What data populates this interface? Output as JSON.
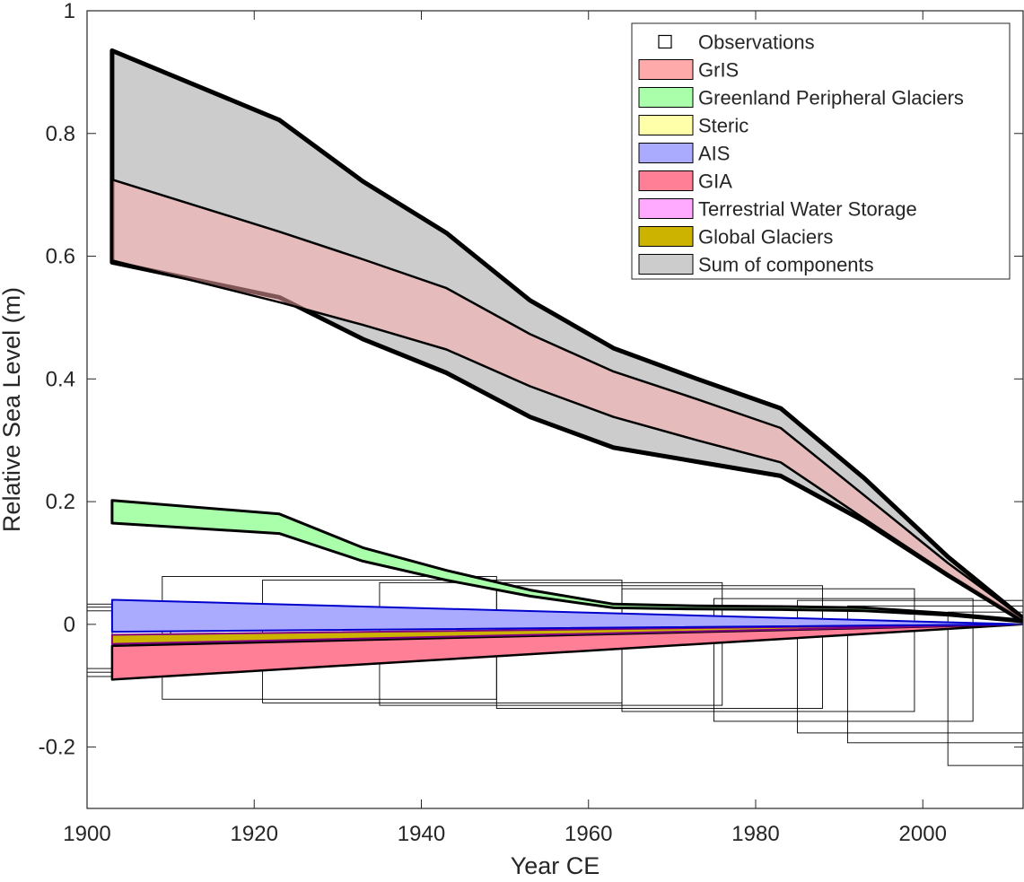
{
  "chart_data": {
    "type": "area",
    "title": "",
    "xlabel": "Year CE",
    "ylabel": "Relative Sea Level (m)",
    "xlim": [
      1900,
      2012
    ],
    "ylim": [
      -0.3,
      1.0
    ],
    "xticks": [
      1900,
      1920,
      1940,
      1960,
      1980,
      2000
    ],
    "yticks": [
      -0.2,
      0,
      0.2,
      0.4,
      0.6,
      0.8,
      1
    ],
    "ytick_labels": [
      "-0.2",
      "0",
      "0.2",
      "0.4",
      "0.6",
      "0.8",
      "1"
    ],
    "grid": false,
    "legend_position": "top-right",
    "legend": [
      {
        "key": "obs",
        "label": "Observations",
        "kind": "marker"
      },
      {
        "key": "gris",
        "label": "GrIS",
        "kind": "patch",
        "color": "#ffaaaa"
      },
      {
        "key": "gpg",
        "label": "Greenland Peripheral Glaciers",
        "kind": "patch",
        "color": "#aaffaa"
      },
      {
        "key": "steric",
        "label": "Steric",
        "kind": "patch",
        "color": "#ffffaa"
      },
      {
        "key": "ais",
        "label": "AIS",
        "kind": "patch",
        "color": "#aaaaff"
      },
      {
        "key": "gia",
        "label": "GIA",
        "kind": "patch",
        "color": "#ff7f96"
      },
      {
        "key": "tws",
        "label": "Terrestrial Water Storage",
        "kind": "patch",
        "color": "#ffaaff"
      },
      {
        "key": "gg",
        "label": "Global Glaciers",
        "kind": "patch",
        "color": "#ccb300"
      },
      {
        "key": "sum",
        "label": "Sum of components",
        "kind": "patch",
        "color": "#cccccc"
      }
    ],
    "bands": [
      {
        "name": "Sum of components",
        "color": "#cccccc",
        "edge": "#000000",
        "edge_width": 5,
        "x": [
          1903,
          1923,
          1933,
          1943,
          1953,
          1963,
          1973,
          1983,
          1993,
          2003,
          2012
        ],
        "upper": [
          0.935,
          0.822,
          0.722,
          0.638,
          0.528,
          0.45,
          0.4,
          0.352,
          0.238,
          0.11,
          0.01
        ],
        "lower": [
          0.59,
          0.533,
          0.465,
          0.41,
          0.338,
          0.288,
          0.265,
          0.242,
          0.168,
          0.08,
          0.005
        ]
      },
      {
        "name": "GrIS",
        "color": "#ffaaaa",
        "opacity": 0.5,
        "edge": "#000000",
        "edge_width": 2.5,
        "x": [
          1903,
          1923,
          1933,
          1943,
          1953,
          1963,
          1973,
          1983,
          1993,
          2003,
          2012
        ],
        "upper": [
          0.725,
          0.64,
          0.595,
          0.548,
          0.473,
          0.412,
          0.367,
          0.32,
          0.21,
          0.1,
          0.01
        ],
        "lower": [
          0.593,
          0.525,
          0.488,
          0.448,
          0.388,
          0.338,
          0.3,
          0.264,
          0.172,
          0.082,
          0.005
        ]
      },
      {
        "name": "Greenland Peripheral Glaciers",
        "color": "#aaffaa",
        "edge": "#000000",
        "edge_width": 3,
        "x": [
          1903,
          1923,
          1933,
          1943,
          1953,
          1963,
          1973,
          1983,
          1993,
          2003,
          2012
        ],
        "upper": [
          0.202,
          0.18,
          0.125,
          0.088,
          0.056,
          0.033,
          0.03,
          0.029,
          0.027,
          0.018,
          0.007
        ],
        "lower": [
          0.165,
          0.148,
          0.103,
          0.072,
          0.046,
          0.027,
          0.025,
          0.024,
          0.022,
          0.015,
          0.004
        ]
      },
      {
        "name": "GIA",
        "color": "#ff7f96",
        "edge": "#000000",
        "edge_width": 2.5,
        "x": [
          1903,
          2012
        ],
        "upper": [
          -0.035,
          0.0
        ],
        "lower": [
          -0.09,
          0.0
        ]
      },
      {
        "name": "Global Glaciers",
        "color": "#ccb300",
        "edge": "#800080",
        "edge_width": 2,
        "x": [
          1903,
          2012
        ],
        "upper": [
          -0.017,
          0.0
        ],
        "lower": [
          -0.032,
          0.0
        ]
      },
      {
        "name": "Terrestrial Water Storage",
        "color": "#ffaaff",
        "edge": "#ff00ff",
        "edge_width": 2,
        "x": [
          1903,
          2012
        ],
        "upper": [
          0.02,
          0.0
        ],
        "lower": [
          0.01,
          0.0
        ]
      },
      {
        "name": "Steric",
        "color": "#ffffaa",
        "edge": "#ffff00",
        "edge_width": 2,
        "x": [
          1903,
          2012
        ],
        "upper": [
          0.03,
          0.0
        ],
        "lower": [
          0.02,
          0.0
        ]
      },
      {
        "name": "AIS",
        "color": "#aaaaff",
        "edge": "#0000cc",
        "edge_width": 2,
        "x": [
          1903,
          2012
        ],
        "upper": [
          0.04,
          0.0
        ],
        "lower": [
          -0.012,
          0.0
        ]
      }
    ],
    "observations": [
      {
        "x0": 1899,
        "x1": 1903,
        "y0": -0.085,
        "y1": 0.033
      },
      {
        "x0": 1899,
        "x1": 1910,
        "y0": -0.078,
        "y1": 0.028
      },
      {
        "x0": 1899,
        "x1": 1910,
        "y0": -0.072,
        "y1": 0.022
      },
      {
        "x0": 1909,
        "x1": 1949,
        "y0": -0.122,
        "y1": 0.078
      },
      {
        "x0": 1921,
        "x1": 1964,
        "y0": -0.128,
        "y1": 0.072
      },
      {
        "x0": 1935,
        "x1": 1976,
        "y0": -0.132,
        "y1": 0.068
      },
      {
        "x0": 1949,
        "x1": 1988,
        "y0": -0.137,
        "y1": 0.063
      },
      {
        "x0": 1964,
        "x1": 1999,
        "y0": -0.142,
        "y1": 0.058
      },
      {
        "x0": 1975,
        "x1": 2006,
        "y0": -0.158,
        "y1": 0.042
      },
      {
        "x0": 1985,
        "x1": 2012,
        "y0": -0.177,
        "y1": 0.039
      },
      {
        "x0": 1991,
        "x1": 2012,
        "y0": -0.193,
        "y1": 0.03
      },
      {
        "x0": 2003,
        "x1": 2012,
        "y0": -0.23,
        "y1": 0.02
      }
    ]
  }
}
